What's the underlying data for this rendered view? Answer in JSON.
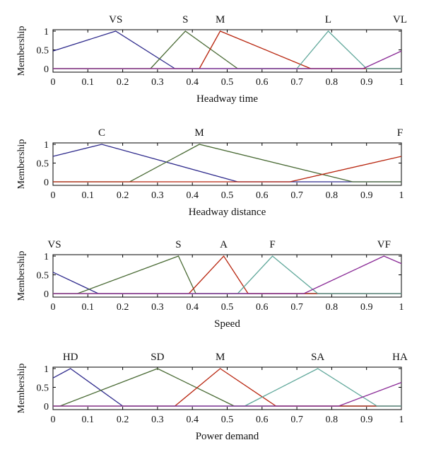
{
  "chart_data": [
    {
      "type": "line",
      "xlabel": "Headway time",
      "ylabel": "Membership",
      "xlim": [
        0,
        1
      ],
      "ylim": [
        0,
        1
      ],
      "xticks": [
        "0",
        "0.1",
        "0.2",
        "0.3",
        "0.4",
        "0.5",
        "0.6",
        "0.7",
        "0.8",
        "0.9",
        "1"
      ],
      "yticks": [
        "0",
        "0.5",
        "1"
      ],
      "series": [
        {
          "name": "VS",
          "color": "#2e2a8c",
          "points": [
            [
              0,
              0.47
            ],
            [
              0.18,
              1
            ],
            [
              0.35,
              0
            ]
          ],
          "baseline": [
            0.35,
            1
          ]
        },
        {
          "name": "S",
          "color": "#4a6b35",
          "points": [
            [
              0.28,
              0
            ],
            [
              0.38,
              1
            ],
            [
              0.53,
              0
            ]
          ],
          "baseline": [
            0,
            0.28,
            0.53,
            1
          ]
        },
        {
          "name": "M",
          "color": "#b8250e",
          "points": [
            [
              0.42,
              0
            ],
            [
              0.48,
              1
            ],
            [
              0.74,
              0
            ]
          ],
          "baseline": [
            0,
            0.42,
            0.74,
            1
          ]
        },
        {
          "name": "L",
          "color": "#5fa79a",
          "points": [
            [
              0.7,
              0
            ],
            [
              0.79,
              1
            ],
            [
              0.9,
              0
            ]
          ],
          "baseline": [
            0,
            0.7,
            0.9,
            1
          ]
        },
        {
          "name": "VL",
          "color": "#8a2a96",
          "points": [
            [
              0.89,
              0
            ],
            [
              1,
              0.47
            ]
          ],
          "baseline": [
            0,
            0.89
          ]
        }
      ]
    },
    {
      "type": "line",
      "xlabel": "Headway distance",
      "ylabel": "Membership",
      "xlim": [
        0,
        1
      ],
      "ylim": [
        0,
        1
      ],
      "xticks": [
        "0",
        "0.1",
        "0.2",
        "0.3",
        "0.4",
        "0.5",
        "0.6",
        "0.7",
        "0.8",
        "0.9",
        "1"
      ],
      "yticks": [
        "0",
        "0.5",
        "1"
      ],
      "series": [
        {
          "name": "C",
          "color": "#2e2a8c",
          "points": [
            [
              0,
              0.68
            ],
            [
              0.14,
              1
            ],
            [
              0.53,
              0
            ]
          ],
          "baseline": [
            0.53,
            1
          ]
        },
        {
          "name": "M",
          "color": "#4a6b35",
          "points": [
            [
              0.22,
              0
            ],
            [
              0.42,
              1
            ],
            [
              0.86,
              0
            ]
          ],
          "baseline": [
            0,
            0.22,
            0.86,
            1
          ]
        },
        {
          "name": "F",
          "color": "#b8250e",
          "points": [
            [
              0.68,
              0
            ],
            [
              1,
              0.68
            ]
          ],
          "baseline": [
            0,
            0.68
          ]
        }
      ]
    },
    {
      "type": "line",
      "xlabel": "Speed",
      "ylabel": "Membership",
      "xlim": [
        0,
        1
      ],
      "ylim": [
        0,
        1
      ],
      "xticks": [
        "0",
        "0.1",
        "0.2",
        "0.3",
        "0.4",
        "0.5",
        "0.6",
        "0.7",
        "0.8",
        "0.9",
        "1"
      ],
      "yticks": [
        "0",
        "0.5",
        "1"
      ],
      "series": [
        {
          "name": "VS",
          "color": "#2e2a8c",
          "points": [
            [
              0,
              0.57
            ],
            [
              0.13,
              0
            ]
          ],
          "baseline": [
            0.13,
            1
          ]
        },
        {
          "name": "S",
          "color": "#4a6b35",
          "points": [
            [
              0.07,
              0
            ],
            [
              0.36,
              1
            ],
            [
              0.41,
              0
            ]
          ],
          "baseline": [
            0,
            0.07,
            0.41,
            1
          ]
        },
        {
          "name": "A",
          "color": "#b8250e",
          "points": [
            [
              0.39,
              0
            ],
            [
              0.49,
              1
            ],
            [
              0.56,
              0
            ]
          ],
          "baseline": [
            0,
            0.39,
            0.56,
            1
          ]
        },
        {
          "name": "F",
          "color": "#5fa79a",
          "points": [
            [
              0.53,
              0
            ],
            [
              0.63,
              1
            ],
            [
              0.76,
              0
            ]
          ],
          "baseline": [
            0,
            0.53,
            0.76,
            1
          ]
        },
        {
          "name": "VF",
          "color": "#8a2a96",
          "points": [
            [
              0.72,
              0
            ],
            [
              0.95,
              1
            ],
            [
              1,
              0.8
            ]
          ],
          "baseline": [
            0,
            0.72
          ]
        }
      ]
    },
    {
      "type": "line",
      "xlabel": "Power demand",
      "ylabel": "Membership",
      "xlim": [
        0,
        1
      ],
      "ylim": [
        0,
        1
      ],
      "xticks": [
        "0",
        "0.1",
        "0.2",
        "0.3",
        "0.4",
        "0.5",
        "0.6",
        "0.7",
        "0.8",
        "0.9",
        "1"
      ],
      "yticks": [
        "0",
        "0.5",
        "1"
      ],
      "series": [
        {
          "name": "HD",
          "color": "#2e2a8c",
          "points": [
            [
              0,
              0.75
            ],
            [
              0.05,
              1
            ],
            [
              0.2,
              0
            ]
          ],
          "baseline": [
            0.2,
            1
          ]
        },
        {
          "name": "SD",
          "color": "#4a6b35",
          "points": [
            [
              0.02,
              0
            ],
            [
              0.3,
              1
            ],
            [
              0.52,
              0
            ]
          ],
          "baseline": [
            0,
            0.02,
            0.52,
            1
          ]
        },
        {
          "name": "M",
          "color": "#b8250e",
          "points": [
            [
              0.35,
              0
            ],
            [
              0.48,
              1
            ],
            [
              0.64,
              0
            ]
          ],
          "baseline": [
            0,
            0.35,
            0.64,
            1
          ]
        },
        {
          "name": "SA",
          "color": "#5fa79a",
          "points": [
            [
              0.55,
              0
            ],
            [
              0.76,
              1
            ],
            [
              0.93,
              0
            ]
          ],
          "baseline": [
            0,
            0.55,
            0.93,
            1
          ]
        },
        {
          "name": "HA",
          "color": "#8a2a96",
          "points": [
            [
              0.82,
              0
            ],
            [
              1,
              0.63
            ]
          ],
          "baseline": [
            0,
            0.82
          ]
        }
      ]
    }
  ]
}
